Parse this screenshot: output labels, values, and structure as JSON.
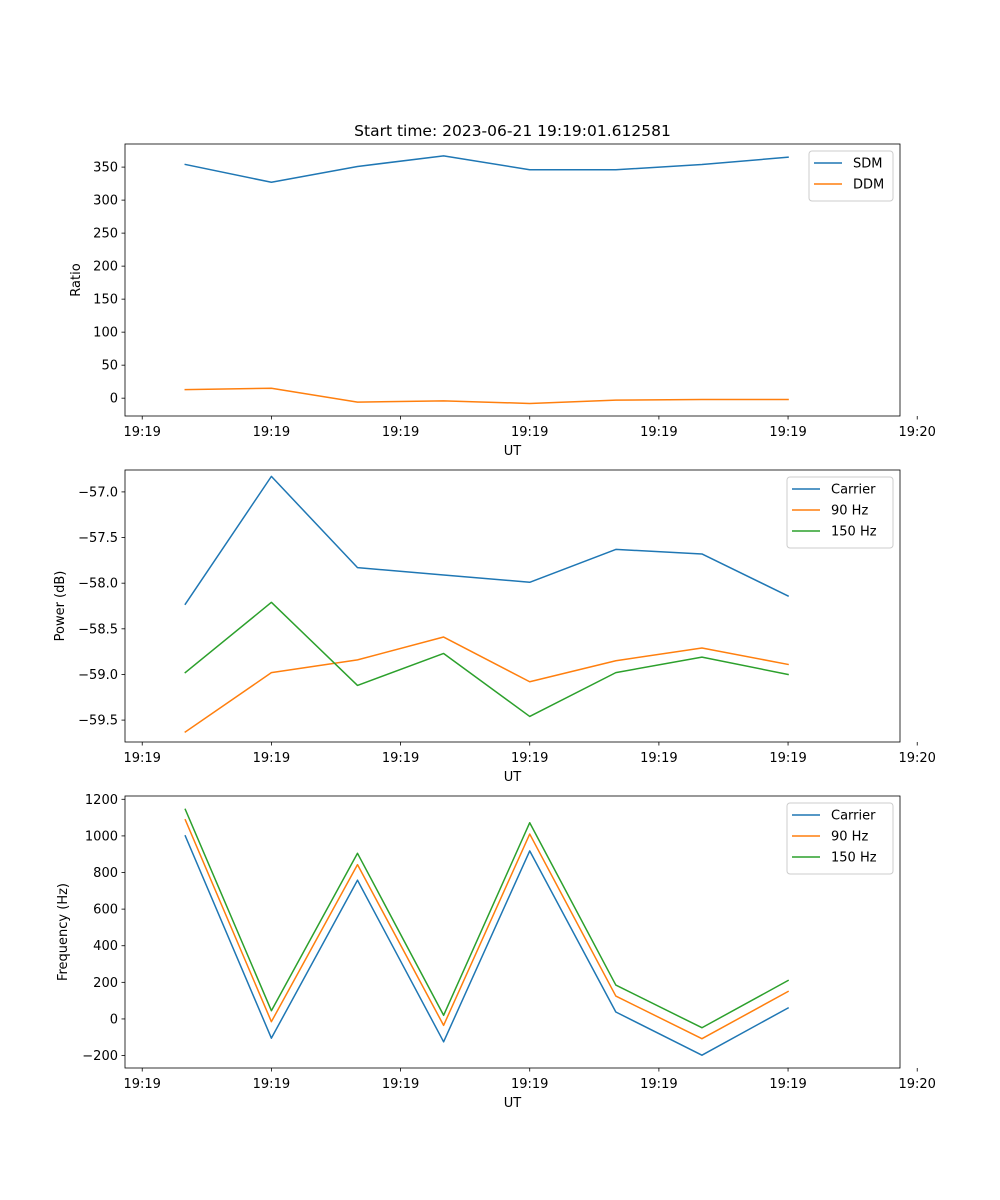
{
  "figure": {
    "title": "Start time: 2023-06-21 19:19:01.612581"
  },
  "colors": {
    "blue": "#1f77b4",
    "orange": "#ff7f0e",
    "green": "#2ca02c"
  },
  "chart_data": [
    {
      "type": "line",
      "title": "Start time: 2023-06-21 19:19:01.612581",
      "xlabel": "UT",
      "ylabel": "Ratio",
      "x": [
        1,
        2,
        3,
        4,
        5,
        6,
        7,
        8
      ],
      "xlim": [
        0.3,
        9.3
      ],
      "xticks": [
        0.5,
        2,
        3.5,
        5,
        6.5,
        8,
        9.5
      ],
      "xticklabels": [
        "19:19",
        "19:19",
        "19:19",
        "19:19",
        "19:19",
        "19:19",
        "19:20"
      ],
      "ylim": [
        -27,
        385
      ],
      "yticks": [
        0,
        50,
        100,
        150,
        200,
        250,
        300,
        350
      ],
      "yticklabels": [
        "0",
        "50",
        "100",
        "150",
        "200",
        "250",
        "300",
        "350"
      ],
      "legend": "top-right",
      "series": [
        {
          "name": "SDM",
          "color": "#1f77b4",
          "values": [
            354,
            327,
            351,
            367,
            346,
            346,
            354,
            365
          ]
        },
        {
          "name": "DDM",
          "color": "#ff7f0e",
          "values": [
            13,
            15,
            -6,
            -4,
            -8,
            -3,
            -2,
            -2
          ]
        }
      ]
    },
    {
      "type": "line",
      "title": "",
      "xlabel": "UT",
      "ylabel": "Power (dB)",
      "x": [
        1,
        2,
        3,
        4,
        5,
        6,
        7,
        8
      ],
      "xlim": [
        0.3,
        9.3
      ],
      "xticks": [
        0.5,
        2,
        3.5,
        5,
        6.5,
        8,
        9.5
      ],
      "xticklabels": [
        "19:19",
        "19:19",
        "19:19",
        "19:19",
        "19:19",
        "19:19",
        "19:20"
      ],
      "ylim": [
        -59.74,
        -56.76
      ],
      "yticks": [
        -59.5,
        -59.0,
        -58.5,
        -58.0,
        -57.5,
        -57.0
      ],
      "yticklabels": [
        "−59.5",
        "−59.0",
        "−58.5",
        "−58.0",
        "−57.5",
        "−57.0"
      ],
      "legend": "top-right",
      "series": [
        {
          "name": "Carrier",
          "color": "#1f77b4",
          "values": [
            -58.23,
            -56.83,
            -57.83,
            -57.91,
            -57.99,
            -57.63,
            -57.68,
            -58.14
          ]
        },
        {
          "name": "90 Hz",
          "color": "#ff7f0e",
          "values": [
            -59.63,
            -58.98,
            -58.84,
            -58.59,
            -59.08,
            -58.85,
            -58.71,
            -58.89
          ]
        },
        {
          "name": "150 Hz",
          "color": "#2ca02c",
          "values": [
            -58.98,
            -58.21,
            -59.12,
            -58.77,
            -59.46,
            -58.98,
            -58.81,
            -59.0
          ]
        }
      ]
    },
    {
      "type": "line",
      "title": "",
      "xlabel": "UT",
      "ylabel": "Frequency (Hz)",
      "x": [
        1,
        2,
        3,
        4,
        5,
        6,
        7,
        8
      ],
      "xlim": [
        0.3,
        9.3
      ],
      "xticks": [
        0.5,
        2,
        3.5,
        5,
        6.5,
        8,
        9.5
      ],
      "xticklabels": [
        "19:19",
        "19:19",
        "19:19",
        "19:19",
        "19:19",
        "19:19",
        "19:20"
      ],
      "ylim": [
        -268,
        1218
      ],
      "yticks": [
        -200,
        0,
        200,
        400,
        600,
        800,
        1000,
        1200
      ],
      "yticklabels": [
        "−200",
        "0",
        "200",
        "400",
        "600",
        "800",
        "1000",
        "1200"
      ],
      "legend": "top-right",
      "series": [
        {
          "name": "Carrier",
          "color": "#1f77b4",
          "values": [
            1000,
            -105,
            758,
            -125,
            918,
            38,
            -198,
            60
          ]
        },
        {
          "name": "90 Hz",
          "color": "#ff7f0e",
          "values": [
            1088,
            -15,
            843,
            -35,
            1010,
            125,
            -108,
            150
          ]
        },
        {
          "name": "150 Hz",
          "color": "#2ca02c",
          "values": [
            1145,
            45,
            905,
            20,
            1072,
            185,
            -48,
            210
          ]
        }
      ]
    }
  ]
}
